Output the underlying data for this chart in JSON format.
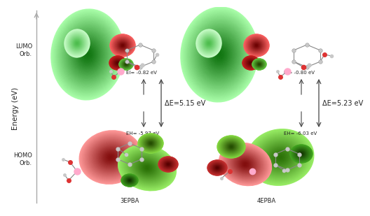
{
  "background_color": "#ffffff",
  "left_axis_label": "Energy (eV)",
  "left_top_label": "LUMO\nOrb.",
  "left_bottom_label": "HOMO\nOrb.",
  "molecule_left": "3EPBA",
  "molecule_right": "4EPBA",
  "el_left": "El= -0.82 eV",
  "el_right": "El= -0.80 eV",
  "eh_left": "EH= -5.97 eV",
  "eh_right": "EH= -6.03 eV",
  "delta_e_left": "ΔE=5.15 eV",
  "delta_e_right": "ΔE=5.23 eV",
  "text_color": "#222222",
  "arrow_color": "#444444",
  "axis_color": "#888888"
}
